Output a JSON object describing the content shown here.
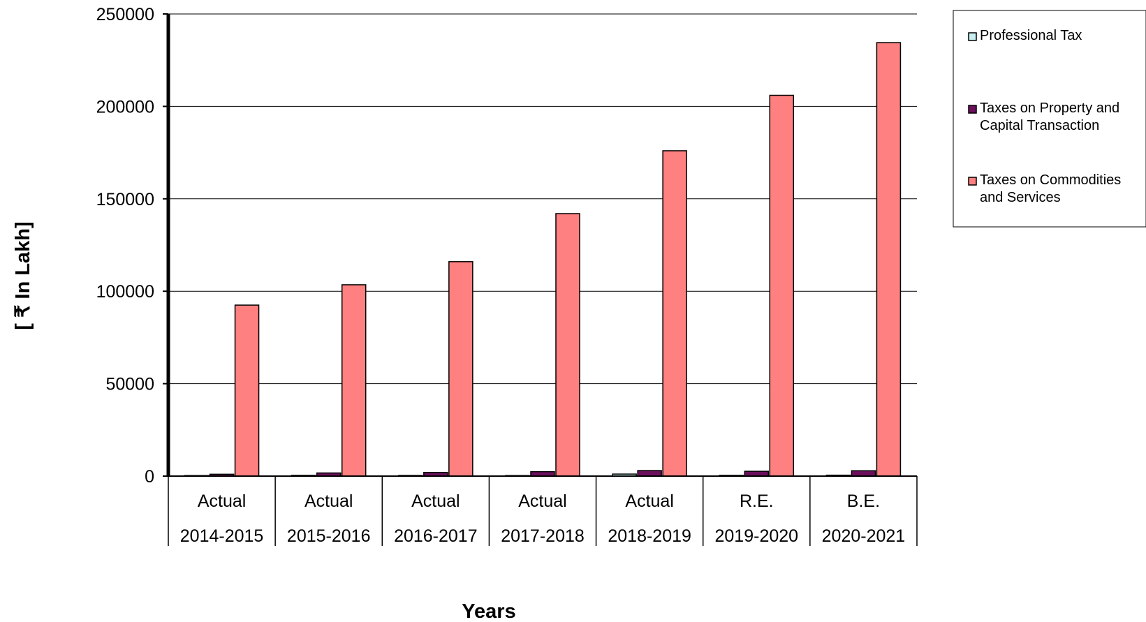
{
  "chart_data": {
    "type": "bar",
    "categories": [
      {
        "top": "Actual",
        "bottom": "2014-2015"
      },
      {
        "top": "Actual",
        "bottom": "2015-2016"
      },
      {
        "top": "Actual",
        "bottom": "2016-2017"
      },
      {
        "top": "Actual",
        "bottom": "2017-2018"
      },
      {
        "top": "Actual",
        "bottom": "2018-2019"
      },
      {
        "top": "R.E.",
        "bottom": "2019-2020"
      },
      {
        "top": "B.E.",
        "bottom": "2020-2021"
      }
    ],
    "series": [
      {
        "name": "Professional Tax",
        "color": "#c8f0f0",
        "values": [
          300,
          400,
          350,
          300,
          1100,
          400,
          500
        ]
      },
      {
        "name": "Taxes on Property and Capital Transaction",
        "color": "#6b0f5c",
        "values": [
          1000,
          1700,
          2000,
          2400,
          3000,
          2600,
          2900
        ]
      },
      {
        "name": "Taxes on Commodities and Services",
        "color": "#ff8080",
        "values": [
          92500,
          103500,
          116000,
          142000,
          176000,
          206000,
          234500
        ]
      }
    ],
    "xlabel": "Years",
    "ylabel": "[ ₹ In Lakh]",
    "ylim": [
      0,
      250000
    ],
    "yticks": [
      0,
      50000,
      100000,
      150000,
      200000,
      250000
    ],
    "grid": true,
    "legend_position": "top-right"
  }
}
